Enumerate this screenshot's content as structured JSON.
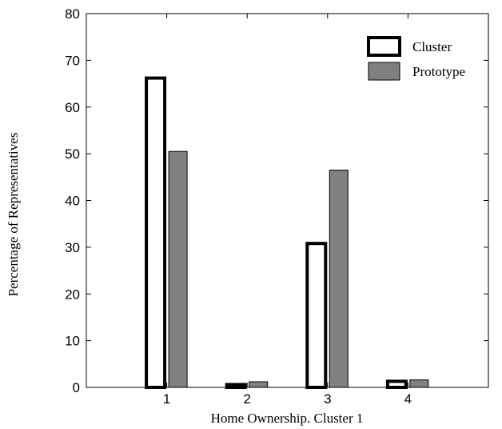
{
  "chart_data": {
    "type": "bar",
    "title": "",
    "xlabel": "Home Ownership. Cluster 1",
    "ylabel": "Percentage of Representatives",
    "categories": [
      "1",
      "2",
      "3",
      "4"
    ],
    "series": [
      {
        "name": "Cluster",
        "values": [
          66.2,
          0.6,
          30.8,
          1.3
        ],
        "style": "outline",
        "color": "#000000"
      },
      {
        "name": "Prototype",
        "values": [
          50.5,
          1.2,
          46.5,
          1.6
        ],
        "style": "filled",
        "color": "#808080"
      }
    ],
    "ylim": [
      0,
      80
    ],
    "yticks": [
      "0",
      "10",
      "20",
      "30",
      "40",
      "50",
      "60",
      "70",
      "80"
    ],
    "xlim": [
      0,
      5
    ],
    "grid": false,
    "legend_position": "top-right"
  }
}
